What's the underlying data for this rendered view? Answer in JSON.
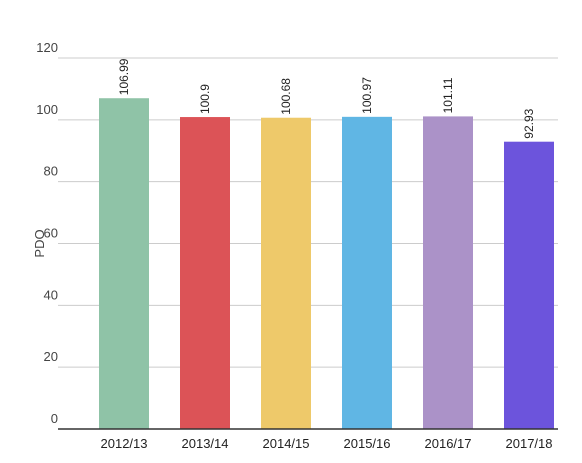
{
  "chart_data": {
    "type": "bar",
    "title": "",
    "xlabel": "",
    "ylabel": "PDO",
    "ylim": [
      0,
      120
    ],
    "yticks": [
      0,
      20,
      40,
      60,
      80,
      100,
      120
    ],
    "grid": true,
    "legend": "none",
    "categories": [
      "2012/13",
      "2013/14",
      "2014/15",
      "2015/16",
      "2016/17",
      "2017/18"
    ],
    "values": [
      106.99,
      100.9,
      100.68,
      100.97,
      101.11,
      92.93
    ],
    "value_labels": [
      "106.99",
      "100.9",
      "100.68",
      "100.97",
      "101.11",
      "92.93"
    ],
    "colors": [
      "#8fc3a7",
      "#dc5357",
      "#eec96a",
      "#60b6e4",
      "#ab92c8",
      "#6c54dc"
    ]
  }
}
